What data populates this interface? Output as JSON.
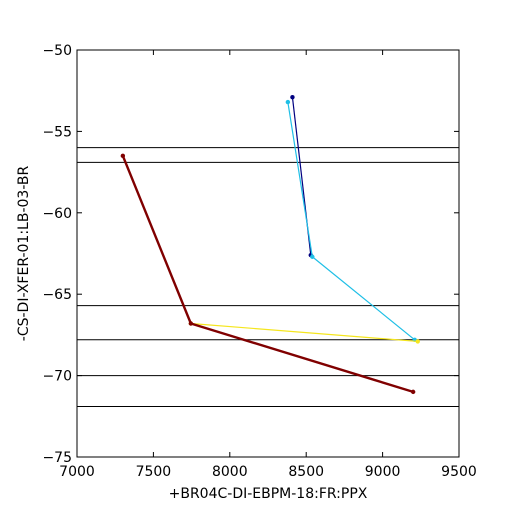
{
  "chart_data": {
    "type": "line",
    "title": "",
    "xlabel": "+BR04C-DI-EBPM-18:FR:PPX",
    "ylabel": "-CS-DI-XFER-01:LB-03-BR",
    "xlim": [
      7000,
      9500
    ],
    "ylim": [
      -75,
      -50
    ],
    "xticks": [
      7000,
      7500,
      8000,
      8500,
      9000,
      9500
    ],
    "yticks": [
      -75,
      -70,
      -65,
      -60,
      -55,
      -50
    ],
    "xtick_labels": [
      "7000",
      "7500",
      "8000",
      "8500",
      "9000",
      "9500"
    ],
    "ytick_labels": [
      "−75",
      "−70",
      "−65",
      "−60",
      "−55",
      "−50"
    ],
    "grid": false,
    "hlines": [
      -56.0,
      -56.9,
      -65.7,
      -67.8,
      -70.0,
      -71.9
    ],
    "series": [
      {
        "color": "#000080",
        "line_width": 1.2,
        "x": [
          8410,
          8530
        ],
        "y": [
          -52.9,
          -62.6
        ]
      },
      {
        "color": "#1fbfe6",
        "line_width": 1.2,
        "x": [
          8380,
          8540,
          9210
        ],
        "y": [
          -53.2,
          -62.7,
          -67.8
        ]
      },
      {
        "color": "#f5e61e",
        "line_width": 1.2,
        "x": [
          7745,
          9230
        ],
        "y": [
          -66.8,
          -67.9
        ]
      },
      {
        "color": "#800000",
        "line_width": 2.4,
        "x": [
          7300,
          7745,
          9200
        ],
        "y": [
          -56.5,
          -66.8,
          -71.0
        ]
      }
    ]
  }
}
